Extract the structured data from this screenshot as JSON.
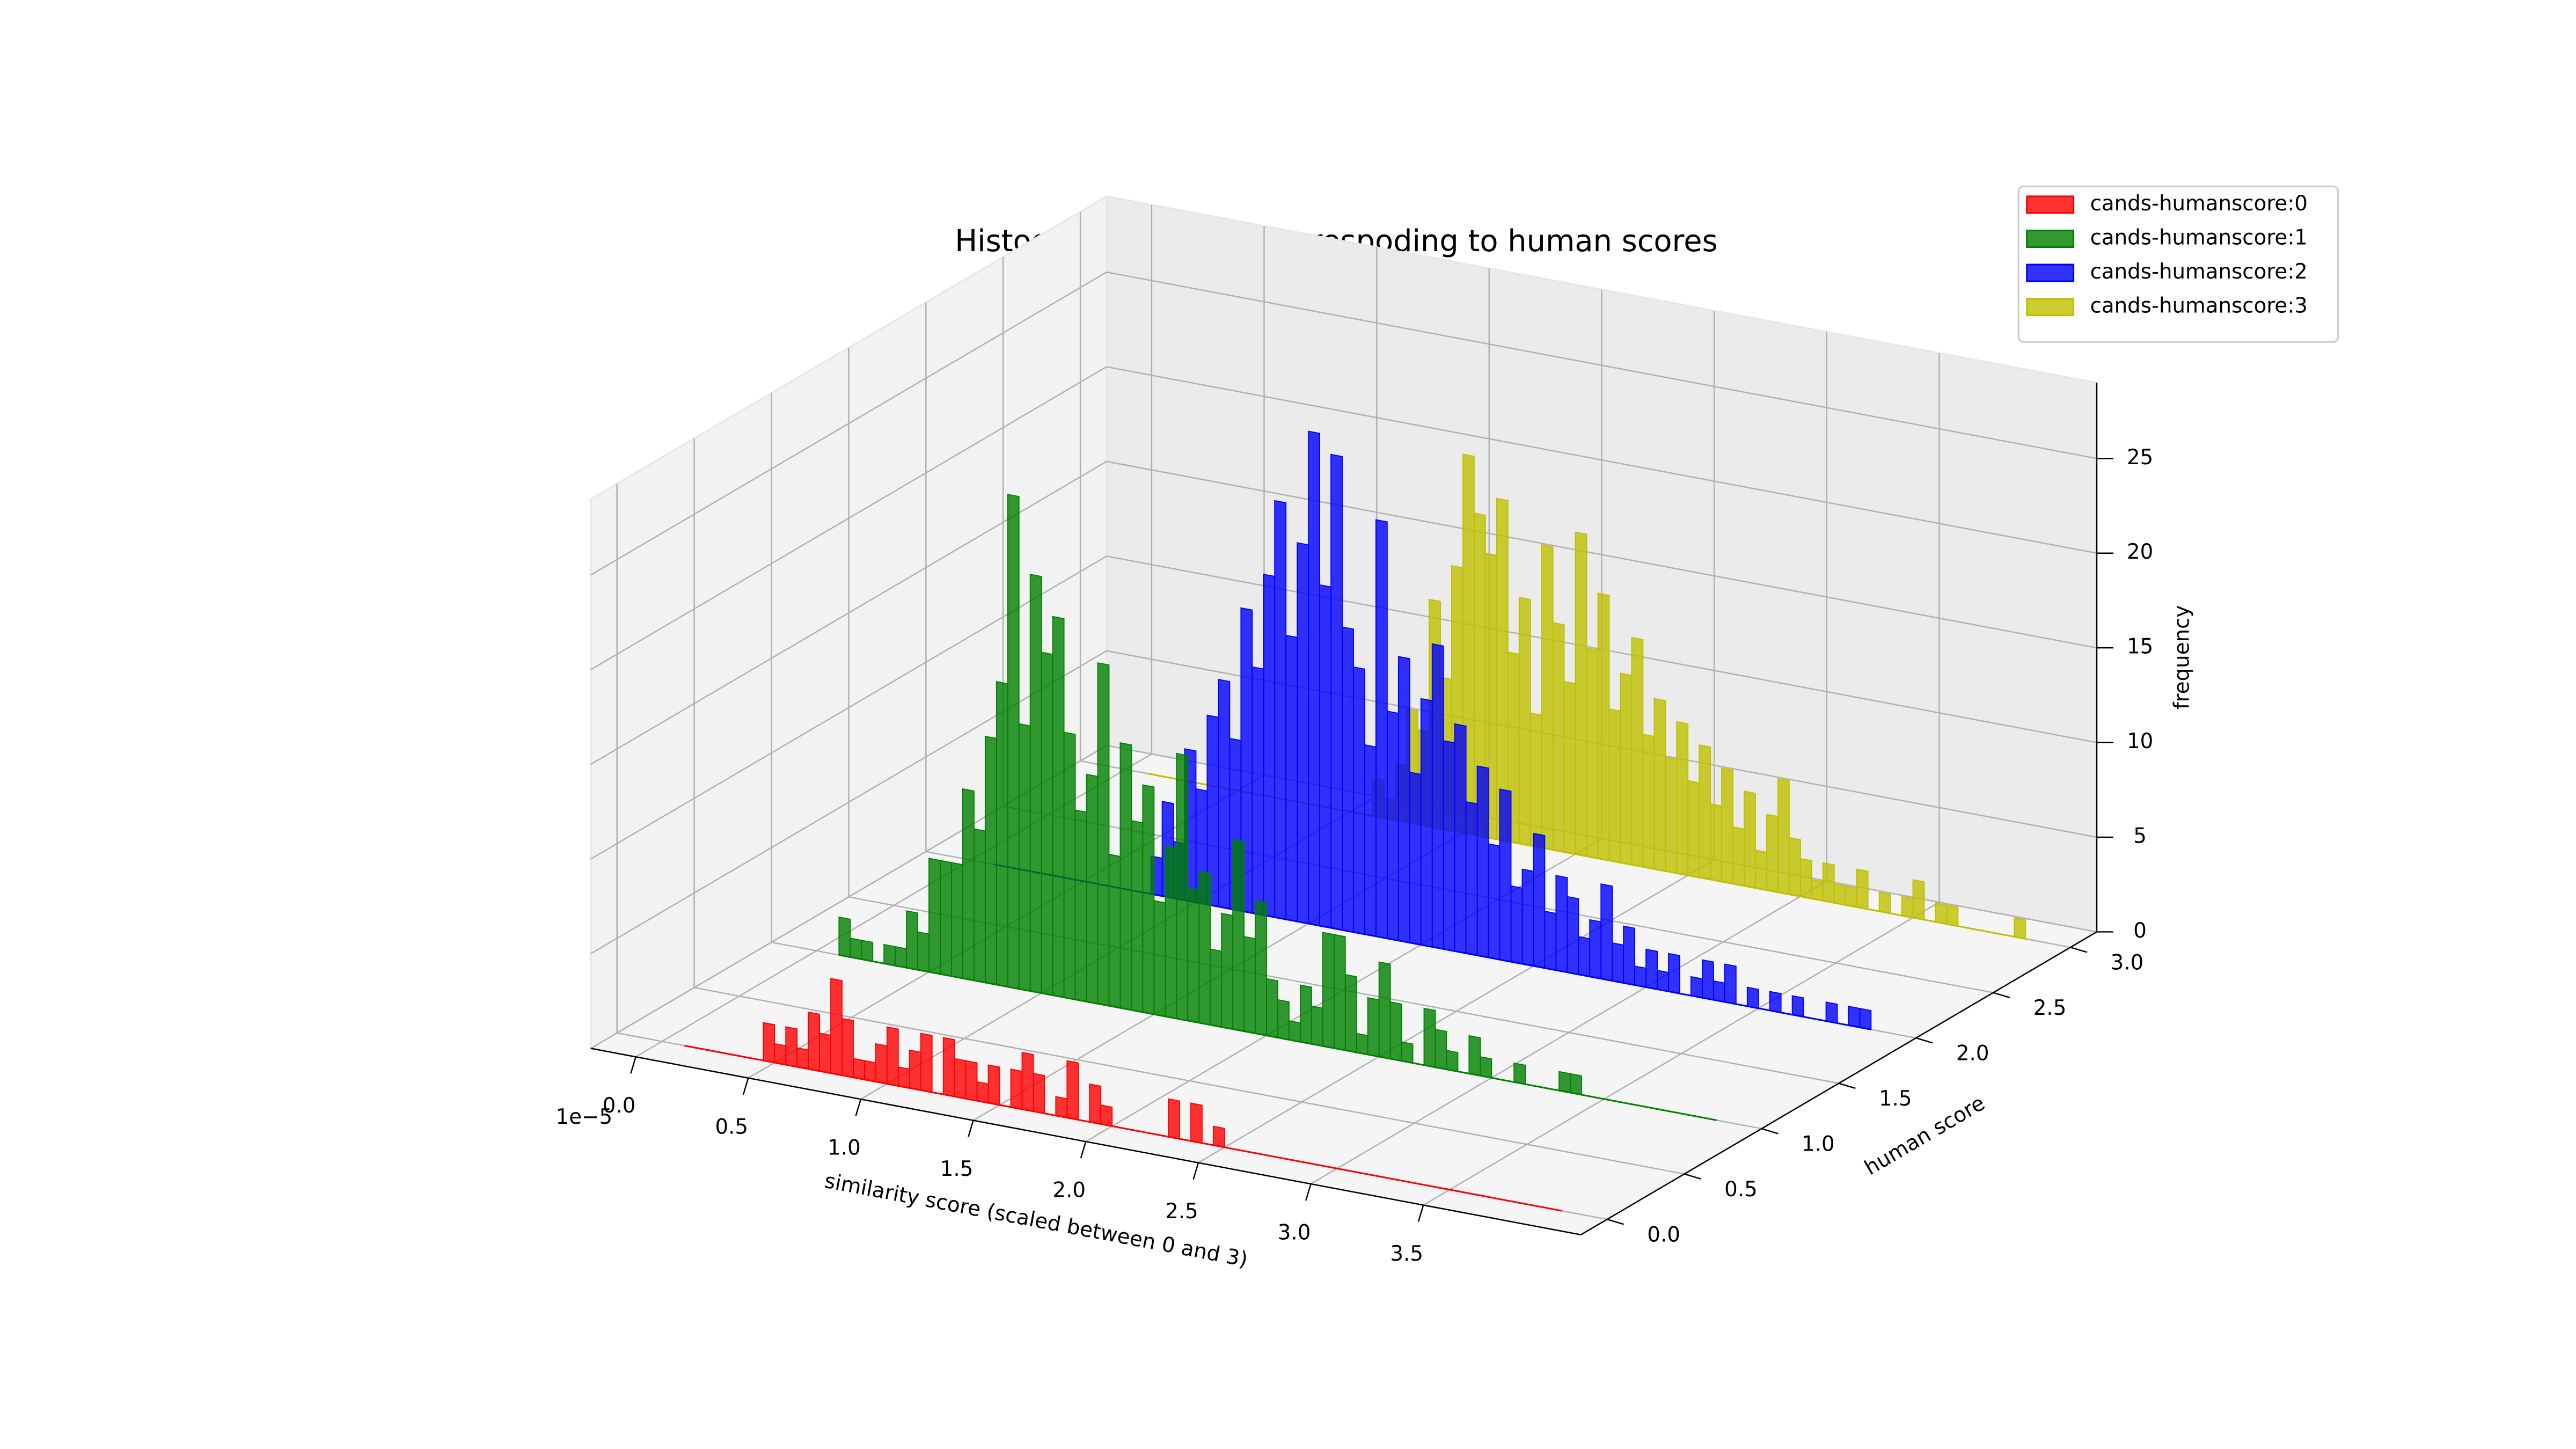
{
  "chart_data": {
    "type": "histogram3d",
    "title": "Histogram of scores correspoding to human scores",
    "x_label": "similarity score (scaled between 0 and 3)",
    "y_label": "human score",
    "z_label": "frequency",
    "x_offset_label": "1e−5",
    "xlim": [
      -0.2,
      4.2
    ],
    "xticks": [
      {
        "value": 0,
        "label": "0.0"
      },
      0.5,
      {
        "value": 1,
        "label": "1.0"
      },
      1.5,
      {
        "value": 2,
        "label": "2.0"
      },
      2.5,
      {
        "value": 3,
        "label": "3.0"
      },
      3.5
    ],
    "ylim": [
      -0.17,
      3.17
    ],
    "yticks": [
      {
        "value": 0,
        "label": "0.0"
      },
      0.5,
      {
        "value": 1,
        "label": "1.0"
      },
      1.5,
      {
        "value": 2,
        "label": "2.0"
      },
      2.5,
      {
        "value": 3,
        "label": "3.0"
      }
    ],
    "zlim": [
      0,
      29
    ],
    "zticks": [
      0,
      5,
      10,
      15,
      20,
      25
    ],
    "grid": true,
    "legend": "upper right",
    "bins": [
      0.1,
      0.15,
      0.2,
      0.25,
      0.3,
      0.35,
      0.4,
      0.45,
      0.5,
      0.55,
      0.6,
      0.65,
      0.7,
      0.75,
      0.8,
      0.85,
      0.9,
      0.95,
      1,
      1.05,
      1.1,
      1.15,
      1.2,
      1.25,
      1.3,
      1.35,
      1.4,
      1.45,
      1.5,
      1.55,
      1.6,
      1.65,
      1.7,
      1.75,
      1.8,
      1.85,
      1.9,
      1.95,
      2,
      2.05,
      2.1,
      2.15,
      2.2,
      2.25,
      2.3,
      2.35,
      2.4,
      2.45,
      2.5,
      2.55,
      2.6,
      2.65,
      2.7,
      2.75,
      2.8,
      2.85,
      2.9,
      2.95,
      3,
      3.05,
      3.1,
      3.15,
      3.2,
      3.25,
      3.3,
      3.35,
      3.4,
      3.45,
      3.5,
      3.55,
      3.6,
      3.65,
      3.7,
      3.75,
      3.8,
      3.85,
      3.9,
      3.95,
      4
    ],
    "series": [
      {
        "name": "cands-humanscore:0",
        "color": "#ff0000",
        "z": 0,
        "values": [
          0,
          0,
          0,
          0,
          0,
          0,
          0,
          2,
          1,
          2,
          1,
          3,
          2,
          5,
          3,
          1,
          1,
          2,
          3,
          1,
          2,
          3,
          0,
          3,
          2,
          2,
          1,
          2,
          0,
          2,
          3,
          2,
          0,
          1,
          3,
          0,
          2,
          1,
          0,
          0,
          0,
          0,
          0,
          2,
          0,
          2,
          0,
          1,
          0,
          0,
          0,
          0,
          0,
          0,
          0,
          0,
          0,
          0,
          0,
          0,
          0,
          0,
          0,
          0,
          0,
          0,
          0,
          0,
          0,
          0,
          0,
          0,
          0,
          0,
          0,
          0,
          0,
          0
        ]
      },
      {
        "name": "cands-humanscore:1",
        "color": "#008000",
        "z": 1,
        "values": [
          2,
          1,
          1,
          0,
          1,
          1,
          3,
          2,
          6,
          6,
          6,
          10,
          8,
          13,
          16,
          26,
          14,
          22,
          18,
          20,
          14,
          10,
          12,
          18,
          8,
          14,
          10,
          12,
          6,
          9,
          14,
          7,
          8,
          4,
          6,
          10,
          5,
          7,
          3,
          2,
          1,
          3,
          2,
          6,
          6,
          4,
          1,
          3,
          5,
          3,
          1,
          0,
          3,
          2,
          1,
          0,
          2,
          1,
          0,
          0,
          1,
          0,
          0,
          0,
          1,
          1,
          0,
          0,
          0,
          0,
          0,
          0,
          0,
          0,
          0,
          0,
          0,
          0
        ]
      },
      {
        "name": "cands-humanscore:2",
        "color": "#0000ff",
        "z": 2,
        "values": [
          0,
          0,
          0,
          0,
          0,
          0,
          0,
          0,
          0,
          0,
          0,
          0,
          0,
          0,
          2,
          5,
          3,
          8,
          6,
          10,
          12,
          9,
          16,
          13,
          18,
          22,
          15,
          20,
          26,
          18,
          25,
          16,
          14,
          10,
          22,
          12,
          15,
          9,
          13,
          16,
          11,
          12,
          8,
          10,
          6,
          9,
          4,
          5,
          7,
          3,
          5,
          4,
          2,
          3,
          5,
          2,
          3,
          1,
          2,
          1,
          2,
          0,
          1,
          2,
          1,
          2,
          0,
          1,
          0,
          1,
          0,
          1,
          0,
          0,
          1,
          0,
          1,
          1
        ]
      },
      {
        "name": "cands-humanscore:3",
        "color": "#bfbf00",
        "z": 3,
        "values": [
          0,
          0,
          0,
          0,
          0,
          0,
          0,
          0,
          0,
          0,
          0,
          0,
          0,
          0,
          0,
          0,
          0,
          0,
          0,
          0,
          2,
          1,
          3,
          6,
          5,
          12,
          8,
          14,
          20,
          17,
          15,
          18,
          10,
          13,
          7,
          16,
          12,
          9,
          17,
          11,
          14,
          8,
          10,
          12,
          7,
          9,
          6,
          8,
          5,
          7,
          4,
          6,
          3,
          5,
          2,
          4,
          6,
          3,
          2,
          1,
          2,
          1,
          1,
          2,
          0,
          1,
          0,
          1,
          2,
          0,
          1,
          1,
          0,
          0,
          0,
          0,
          0,
          1
        ]
      }
    ]
  }
}
